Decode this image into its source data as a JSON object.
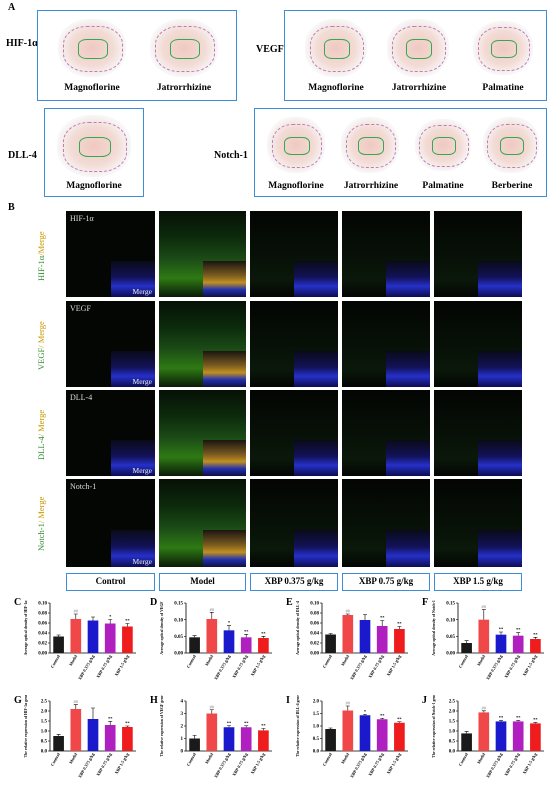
{
  "panels": {
    "A": "A",
    "B": "B",
    "C": "C",
    "D": "D",
    "E": "E",
    "F": "F",
    "G": "G",
    "H": "H",
    "I": "I",
    "J": "J"
  },
  "docking": {
    "proteins": [
      "HIF-1α",
      "VEGF",
      "DLL-4",
      "Notch-1"
    ],
    "hif_ligands": [
      "Magnoflorine",
      "Jatrorrhizine"
    ],
    "vegf_ligands": [
      "Magnoflorine",
      "Jatrorrhizine",
      "Palmatine"
    ],
    "dll_ligands": [
      "Magnoflorine"
    ],
    "notch_ligands": [
      "Magnoflorine",
      "Jatrorrhizine",
      "Palmatine",
      "Berberine"
    ]
  },
  "fluorescence": {
    "row_markers": [
      "HIF-1α",
      "VEGF",
      "DLL-4",
      "Notch-1"
    ],
    "row_labels": [
      {
        "a": "HIF-1α",
        "b": "/Merge"
      },
      {
        "a": "VEGF",
        "b": "/ Merge"
      },
      {
        "a": "DLL-4",
        "b": "/ Merge"
      },
      {
        "a": "Notch-1",
        "b": "/ Merge"
      }
    ],
    "merge_label": "Merge",
    "groups": [
      "Control",
      "Model",
      "XBP 0.375 g/kg",
      "XBP 0.75 g/kg",
      "XBP 1.5 g/kg"
    ]
  },
  "bar_colors": [
    "#1a1a1a",
    "#f04848",
    "#1a1acc",
    "#b020c0",
    "#ee1c1c"
  ],
  "chart_data": [
    {
      "id": "C",
      "type": "bar",
      "ylabel": "Average optical density of HIF-1α",
      "ylim": [
        0,
        0.1
      ],
      "yticks": [
        "0.00",
        "0.02",
        "0.04",
        "0.06",
        "0.08",
        "0.10"
      ],
      "categories": [
        "Control",
        "Model",
        "XBP 0.375 g/kg",
        "XBP 0.75 g/kg",
        "XBP 1.5 g/kg"
      ],
      "values": [
        0.033,
        0.068,
        0.065,
        0.059,
        0.053
      ],
      "errors": [
        0.003,
        0.01,
        0.007,
        0.008,
        0.006
      ],
      "marks": [
        "",
        "##",
        "",
        "*",
        "**"
      ]
    },
    {
      "id": "D",
      "type": "bar",
      "ylabel": "Average optical density of VEGF",
      "ylim": [
        0,
        0.15
      ],
      "yticks": [
        "0.00",
        "0.05",
        "0.10",
        "0.15"
      ],
      "categories": [
        "Control",
        "Model",
        "XBP 0.375 g/kg",
        "XBP 0.75 g/kg",
        "XBP 1.5 g/kg"
      ],
      "values": [
        0.047,
        0.102,
        0.068,
        0.047,
        0.045
      ],
      "errors": [
        0.005,
        0.02,
        0.014,
        0.009,
        0.005
      ],
      "marks": [
        "",
        "##",
        "*",
        "**",
        "**"
      ]
    },
    {
      "id": "E",
      "type": "bar",
      "ylabel": "Average optical density of DLL-4",
      "ylim": [
        0,
        0.1
      ],
      "yticks": [
        "0.00",
        "0.02",
        "0.04",
        "0.06",
        "0.08",
        "0.10"
      ],
      "categories": [
        "Control",
        "Model",
        "XBP 0.375 g/kg",
        "XBP 0.75 g/kg",
        "XBP 1.5 g/kg"
      ],
      "values": [
        0.037,
        0.076,
        0.066,
        0.054,
        0.048
      ],
      "errors": [
        0.002,
        0.002,
        0.011,
        0.011,
        0.005
      ],
      "marks": [
        "",
        "##",
        "",
        "**",
        "**"
      ]
    },
    {
      "id": "F",
      "type": "bar",
      "ylabel": "Average optical density of Notch-1",
      "ylim": [
        0,
        0.15
      ],
      "yticks": [
        "0.00",
        "0.05",
        "0.10",
        "0.15"
      ],
      "categories": [
        "Control",
        "Model",
        "XBP 0.375 g/kg",
        "XBP 0.75 g/kg",
        "XBP 1.5 g/kg"
      ],
      "values": [
        0.03,
        0.1,
        0.055,
        0.052,
        0.042
      ],
      "errors": [
        0.007,
        0.03,
        0.008,
        0.009,
        0.005
      ],
      "marks": [
        "",
        "##",
        "**",
        "**",
        "**"
      ]
    },
    {
      "id": "G",
      "type": "bar",
      "ylabel": "The relative expression of HIF-1α gene",
      "ylim": [
        0,
        2.5
      ],
      "yticks": [
        "0.0",
        "0.5",
        "1.0",
        "1.5",
        "2.0",
        "2.5"
      ],
      "categories": [
        "Control",
        "Model",
        "XBP 0.375 g/kg",
        "XBP 0.75 g/kg",
        "XBP 1.5 g/kg"
      ],
      "values": [
        0.75,
        2.1,
        1.6,
        1.3,
        1.2
      ],
      "errors": [
        0.08,
        0.22,
        0.55,
        0.17,
        0.05
      ],
      "marks": [
        "",
        "##",
        "",
        "**",
        "**"
      ]
    },
    {
      "id": "H",
      "type": "bar",
      "ylabel": "The relative expression of VEGF gene",
      "ylim": [
        0,
        4
      ],
      "yticks": [
        "0",
        "1",
        "2",
        "3",
        "4"
      ],
      "categories": [
        "Control",
        "Model",
        "XBP 0.375 g/kg",
        "XBP 0.75 g/kg",
        "XBP 1.5 g/kg"
      ],
      "values": [
        1.0,
        3.0,
        1.9,
        1.9,
        1.65
      ],
      "errors": [
        0.25,
        0.3,
        0.12,
        0.12,
        0.15
      ],
      "marks": [
        "",
        "##",
        "**",
        "**",
        "**"
      ]
    },
    {
      "id": "I",
      "type": "bar",
      "ylabel": "The relative expression of DLL-4 gene",
      "ylim": [
        0,
        2.0
      ],
      "yticks": [
        "0.0",
        "0.5",
        "1.0",
        "1.5",
        "2.0"
      ],
      "categories": [
        "Control",
        "Model",
        "XBP 0.375 g/kg",
        "XBP 0.75 g/kg",
        "XBP 1.5 g/kg"
      ],
      "values": [
        0.88,
        1.62,
        1.43,
        1.27,
        1.13
      ],
      "errors": [
        0.04,
        0.18,
        0.04,
        0.04,
        0.04
      ],
      "marks": [
        "",
        "##",
        "*",
        "**",
        "**"
      ]
    },
    {
      "id": "J",
      "type": "bar",
      "ylabel": "The relative expression of Notch-1 gene",
      "ylim": [
        0,
        2.5
      ],
      "yticks": [
        "0.0",
        "0.5",
        "1.0",
        "1.5",
        "2.0",
        "2.5"
      ],
      "categories": [
        "Control",
        "Model",
        "XBP 0.375 g/kg",
        "XBP 0.75 g/kg",
        "XBP 1.5 g/kg"
      ],
      "values": [
        0.88,
        1.93,
        1.48,
        1.48,
        1.38
      ],
      "errors": [
        0.1,
        0.08,
        0.04,
        0.04,
        0.04
      ],
      "marks": [
        "",
        "##",
        "**",
        "**",
        "**"
      ]
    }
  ]
}
